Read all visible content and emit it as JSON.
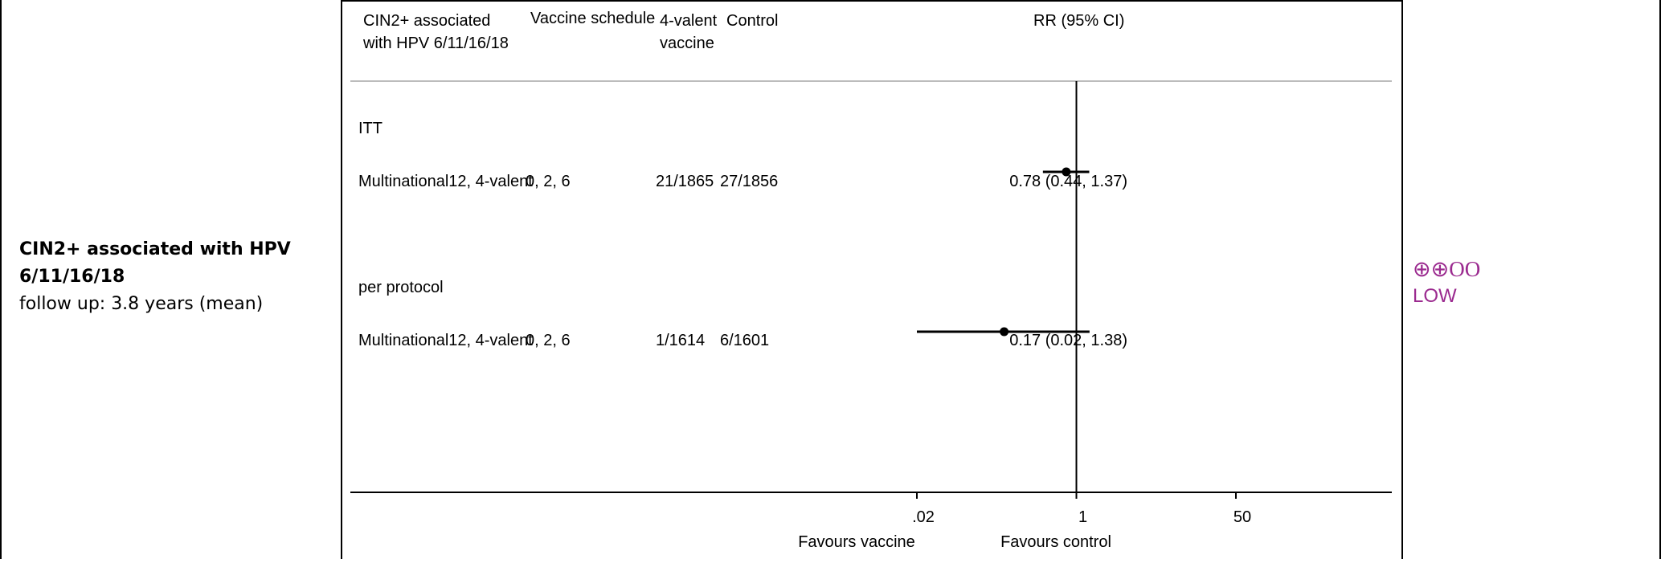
{
  "outcome": {
    "title": "CIN2+ associated with HPV 6/11/16/18",
    "followup": "follow up: 3.8 years (mean)"
  },
  "certainty": {
    "symbols": "⊕⊕OO",
    "level": "LOW",
    "color": "#9b2a8f"
  },
  "chart_data": {
    "type": "forest",
    "x_scale": "log",
    "xlim": [
      0.02,
      50
    ],
    "reference_line": 1,
    "xticks": [
      ".02",
      "1",
      "50"
    ],
    "x_labels": {
      "left": "Favours vaccine",
      "right": "Favours control"
    },
    "headers": {
      "outcome_line1": "CIN2+ associated",
      "outcome_line2": "with HPV 6/11/16/18",
      "schedule": "Vaccine schedule",
      "vaccine_line1": "4-valent",
      "vaccine_line2": "vaccine",
      "control": "Control",
      "effect": "RR (95% CI)"
    },
    "groups": [
      {
        "label": "ITT",
        "studies": [
          {
            "study": "Multinational12, 4-valent",
            "schedule": "0, 2, 6",
            "vaccine": "21/1865",
            "control": "27/1856",
            "rr": 0.78,
            "lo": 0.44,
            "hi": 1.37,
            "text": "0.78 (0.44, 1.37)"
          }
        ]
      },
      {
        "label": "per protocol",
        "studies": [
          {
            "study": "Multinational12, 4-valent",
            "schedule": "0, 2, 6",
            "vaccine": "1/1614",
            "control": "6/1601",
            "rr": 0.17,
            "lo": 0.02,
            "hi": 1.38,
            "text": "0.17 (0.02, 1.38)"
          }
        ]
      }
    ]
  }
}
